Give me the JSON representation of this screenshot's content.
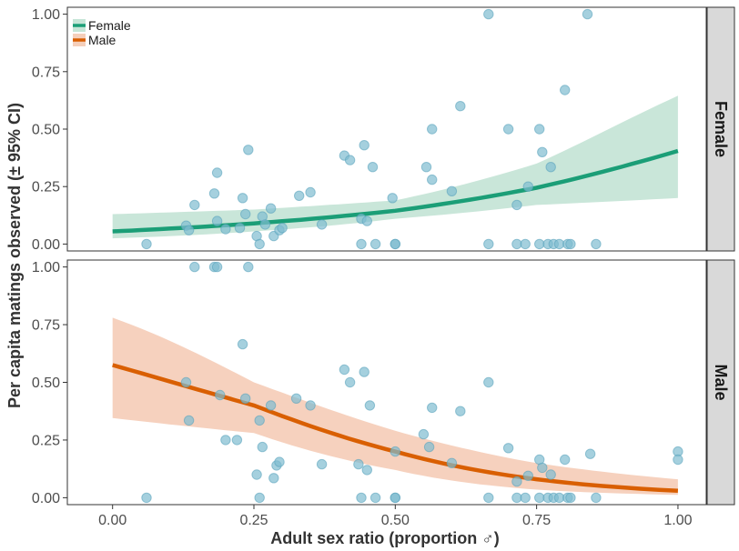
{
  "chart_data": {
    "type": "scatter",
    "xlabel": "Adult sex ratio (proportion ♂)",
    "ylabel": "Per capita matings observed (± 95% CI)",
    "xlim": [
      -0.08,
      1.05
    ],
    "ylim": [
      -0.03,
      1.03
    ],
    "x_ticks": [
      "0.00",
      "0.25",
      "0.50",
      "0.75",
      "1.00"
    ],
    "y_ticks": [
      "0.00",
      "0.25",
      "0.50",
      "0.75",
      "1.00"
    ],
    "grid": false,
    "legend_position": "top-left",
    "colors": {
      "female_line": "#1b9e77",
      "female_ribbon": "#c6e5d7",
      "male_line": "#d95f02",
      "male_ribbon": "#f5cfbb",
      "points": "#7fbcd0",
      "points_stroke": "#5aa3bc",
      "strip_bg": "#d9d9d9"
    },
    "legend": [
      {
        "name": "Female",
        "color": "#1b9e77",
        "fill": "#c6e5d7"
      },
      {
        "name": "Male",
        "color": "#d95f02",
        "fill": "#f5cfbb"
      }
    ],
    "panels": [
      {
        "strip_label": "Female",
        "fit": {
          "x": [
            0,
            0.25,
            0.5,
            0.75,
            1.0
          ],
          "y": [
            0.055,
            0.09,
            0.145,
            0.245,
            0.405
          ],
          "lower": [
            0.025,
            0.055,
            0.11,
            0.17,
            0.2
          ],
          "upper": [
            0.13,
            0.15,
            0.19,
            0.35,
            0.645
          ]
        },
        "points": [
          [
            0.06,
            0
          ],
          [
            0.13,
            0.08
          ],
          [
            0.135,
            0.06
          ],
          [
            0.145,
            0.17
          ],
          [
            0.18,
            0.22
          ],
          [
            0.185,
            0.31
          ],
          [
            0.185,
            0.1
          ],
          [
            0.2,
            0.065
          ],
          [
            0.225,
            0.07
          ],
          [
            0.23,
            0.2
          ],
          [
            0.235,
            0.13
          ],
          [
            0.24,
            0.41
          ],
          [
            0.255,
            0.035
          ],
          [
            0.26,
            0
          ],
          [
            0.265,
            0.12
          ],
          [
            0.27,
            0.085
          ],
          [
            0.28,
            0.155
          ],
          [
            0.285,
            0.035
          ],
          [
            0.295,
            0.06
          ],
          [
            0.3,
            0.07
          ],
          [
            0.33,
            0.21
          ],
          [
            0.35,
            0.225
          ],
          [
            0.37,
            0.085
          ],
          [
            0.41,
            0.385
          ],
          [
            0.42,
            0.365
          ],
          [
            0.44,
            0
          ],
          [
            0.44,
            0.11
          ],
          [
            0.445,
            0.43
          ],
          [
            0.45,
            0.1
          ],
          [
            0.46,
            0.335
          ],
          [
            0.465,
            0
          ],
          [
            0.495,
            0.2
          ],
          [
            0.5,
            0
          ],
          [
            0.5,
            0
          ],
          [
            0.555,
            0.335
          ],
          [
            0.565,
            0.28
          ],
          [
            0.565,
            0.5
          ],
          [
            0.6,
            0.23
          ],
          [
            0.615,
            0.6
          ],
          [
            0.665,
            1.0
          ],
          [
            0.665,
            0
          ],
          [
            0.7,
            0.5
          ],
          [
            0.715,
            0.17
          ],
          [
            0.715,
            0
          ],
          [
            0.73,
            0
          ],
          [
            0.735,
            0.25
          ],
          [
            0.755,
            0.5
          ],
          [
            0.755,
            0
          ],
          [
            0.76,
            0.4
          ],
          [
            0.77,
            0
          ],
          [
            0.775,
            0.335
          ],
          [
            0.78,
            0
          ],
          [
            0.79,
            0
          ],
          [
            0.8,
            0.67
          ],
          [
            0.805,
            0
          ],
          [
            0.81,
            0
          ],
          [
            0.84,
            1.0
          ],
          [
            0.855,
            0
          ]
        ]
      },
      {
        "strip_label": "Male",
        "fit": {
          "x": [
            0,
            0.25,
            0.5,
            0.75,
            1.0
          ],
          "y": [
            0.575,
            0.4,
            0.2,
            0.08,
            0.03
          ],
          "lower": [
            0.345,
            0.28,
            0.12,
            0.035,
            0.012
          ],
          "upper": [
            0.78,
            0.5,
            0.29,
            0.15,
            0.08
          ]
        },
        "points": [
          [
            0.06,
            0
          ],
          [
            0.13,
            0.5
          ],
          [
            0.135,
            0.335
          ],
          [
            0.145,
            1.0
          ],
          [
            0.18,
            1.0
          ],
          [
            0.185,
            1.0
          ],
          [
            0.19,
            0.445
          ],
          [
            0.2,
            0.25
          ],
          [
            0.22,
            0.25
          ],
          [
            0.23,
            0.665
          ],
          [
            0.235,
            0.43
          ],
          [
            0.24,
            1.0
          ],
          [
            0.255,
            0.1
          ],
          [
            0.26,
            0
          ],
          [
            0.26,
            0.335
          ],
          [
            0.265,
            0.22
          ],
          [
            0.28,
            0.4
          ],
          [
            0.285,
            0.085
          ],
          [
            0.29,
            0.14
          ],
          [
            0.295,
            0.155
          ],
          [
            0.325,
            0.43
          ],
          [
            0.35,
            0.4
          ],
          [
            0.37,
            0.145
          ],
          [
            0.41,
            0.555
          ],
          [
            0.42,
            0.5
          ],
          [
            0.435,
            0.145
          ],
          [
            0.44,
            0
          ],
          [
            0.445,
            0.545
          ],
          [
            0.45,
            0.12
          ],
          [
            0.455,
            0.4
          ],
          [
            0.465,
            0
          ],
          [
            0.5,
            0.2
          ],
          [
            0.5,
            0
          ],
          [
            0.5,
            0
          ],
          [
            0.55,
            0.275
          ],
          [
            0.56,
            0.22
          ],
          [
            0.565,
            0.39
          ],
          [
            0.6,
            0.15
          ],
          [
            0.615,
            0.375
          ],
          [
            0.665,
            0.5
          ],
          [
            0.665,
            0
          ],
          [
            0.7,
            0.215
          ],
          [
            0.715,
            0
          ],
          [
            0.715,
            0.07
          ],
          [
            0.73,
            0
          ],
          [
            0.735,
            0.095
          ],
          [
            0.755,
            0
          ],
          [
            0.755,
            0.165
          ],
          [
            0.76,
            0.13
          ],
          [
            0.77,
            0
          ],
          [
            0.775,
            0.1
          ],
          [
            0.78,
            0
          ],
          [
            0.79,
            0
          ],
          [
            0.8,
            0.165
          ],
          [
            0.805,
            0
          ],
          [
            0.81,
            0
          ],
          [
            0.845,
            0.19
          ],
          [
            0.855,
            0
          ],
          [
            1.0,
            0.2
          ],
          [
            1.0,
            0.165
          ]
        ]
      }
    ]
  }
}
